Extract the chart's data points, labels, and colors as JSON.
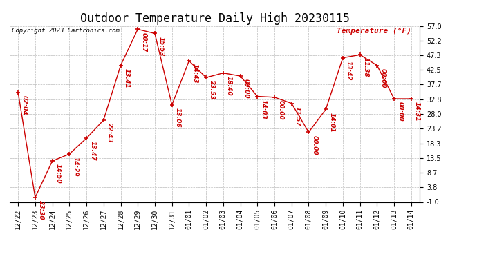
{
  "title": "Outdoor Temperature Daily High 20230115",
  "copyright_text": "Copyright 2023 Cartronics.com",
  "ylabel": "Temperature (°F)",
  "background_color": "#ffffff",
  "grid_color": "#bbbbbb",
  "line_color": "#cc0000",
  "text_color": "#cc0000",
  "dates": [
    "12/22",
    "12/23",
    "12/24",
    "12/25",
    "12/26",
    "12/27",
    "12/28",
    "12/29",
    "12/30",
    "12/31",
    "01/01",
    "01/02",
    "01/03",
    "01/04",
    "01/05",
    "01/06",
    "01/07",
    "01/08",
    "01/09",
    "01/10",
    "01/11",
    "01/12",
    "01/13",
    "01/14"
  ],
  "temps": [
    35.1,
    0.5,
    12.5,
    14.8,
    20.0,
    26.0,
    44.0,
    55.9,
    54.5,
    31.0,
    45.5,
    40.0,
    41.5,
    40.5,
    33.8,
    33.5,
    31.5,
    22.0,
    29.5,
    46.5,
    47.5,
    44.0,
    33.0,
    33.0
  ],
  "time_labels": [
    "02:04",
    "23:30",
    "14:50",
    "14:29",
    "13:47",
    "22:43",
    "13:41",
    "00:17",
    "15:53",
    "13:06",
    "14:43",
    "23:53",
    "18:40",
    "00:00",
    "14:03",
    "00:00",
    "11:57",
    "00:00",
    "14:01",
    "13:42",
    "11:38",
    "00:00",
    "00:00",
    "14:31"
  ],
  "ylim": [
    -1.0,
    57.0
  ],
  "yticks": [
    -1.0,
    3.8,
    8.7,
    13.5,
    18.3,
    23.2,
    28.0,
    32.8,
    37.7,
    42.5,
    47.3,
    52.2,
    57.0
  ],
  "title_fontsize": 12,
  "label_fontsize": 8,
  "tick_fontsize": 7,
  "anno_fontsize": 6.5
}
